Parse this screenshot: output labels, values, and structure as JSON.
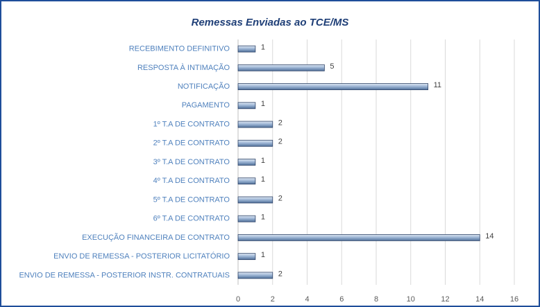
{
  "chart_data": {
    "type": "bar",
    "orientation": "horizontal",
    "title": "Remessas Enviadas ao TCE/MS",
    "categories": [
      "RECEBIMENTO DEFINITIVO",
      "RESPOSTA À INTIMAÇÃO",
      "NOTIFICAÇÃO",
      "PAGAMENTO",
      "1º T.A DE CONTRATO",
      "2º T.A DE CONTRATO",
      "3º T.A DE CONTRATO",
      "4º T.A DE CONTRATO",
      "5º T.A DE CONTRATO",
      "6º T.A DE CONTRATO",
      "EXECUÇÃO FINANCEIRA DE CONTRATO",
      "ENVIO DE REMESSA  - POSTERIOR LICITATÓRIO",
      "ENVIO DE REMESSA  - POSTERIOR INSTR. CONTRATUAIS"
    ],
    "values": [
      1,
      5,
      11,
      1,
      2,
      2,
      1,
      1,
      2,
      1,
      14,
      1,
      2
    ],
    "color": "#8eaacc",
    "xlim": [
      0,
      16
    ],
    "xticks": [
      0,
      2,
      4,
      6,
      8,
      10,
      12,
      14,
      16
    ],
    "grid": true
  }
}
